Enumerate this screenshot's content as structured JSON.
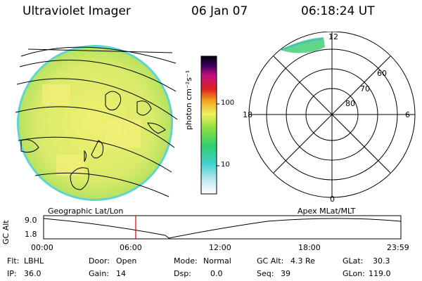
{
  "header": {
    "instrument": "Ultraviolet Imager",
    "date": "06 Jan 07",
    "time": "06:18:24 UT"
  },
  "colorbar": {
    "unit_label": "photon cm⁻²s⁻¹",
    "ticks": [
      "100",
      "10"
    ]
  },
  "polar": {
    "mlt_labels": {
      "top": "12",
      "bottom": "0",
      "left": "18",
      "right": "6"
    },
    "lat_labels": [
      "60",
      "70",
      "80"
    ]
  },
  "panel_labels": {
    "geographic": "Geographic Lat/Lon",
    "apex": "Apex MLat/MLT"
  },
  "gc_alt_plot": {
    "axis_label": "GC Alt",
    "y_ticks": [
      "9.0",
      "1.8"
    ],
    "x_ticks": [
      "00:00",
      "06:00",
      "12:00",
      "18:00",
      "23:59"
    ]
  },
  "status": {
    "flt_label": "Flt:",
    "flt_value": "LBHL",
    "ip_label": "IP:",
    "ip_value": "36.0",
    "door_label": "Door:",
    "door_value": "Open",
    "gain_label": "Gain:",
    "gain_value": "14",
    "mode_label": "Mode:",
    "mode_value": "Normal",
    "dsp_label": "Dsp:",
    "dsp_value": "0.0",
    "gcalt_label": "GC Alt:",
    "gcalt_value": "4.3 Re",
    "seq_label": "Seq:",
    "seq_value": "39",
    "glat_label": "GLat:",
    "glat_value": "30.3",
    "glon_label": "GLon:",
    "glon_value": "119.0"
  },
  "colors": {
    "disk_fill": "#e6ec70",
    "disk_edge": "#4fd0d0",
    "marker": "#d00000"
  }
}
